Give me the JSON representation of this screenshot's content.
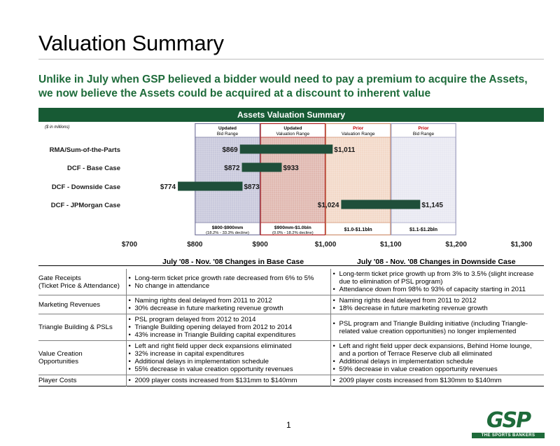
{
  "page": {
    "title": "Valuation Summary",
    "subtitle": "Unlike in July when GSP believed a bidder would need to pay a premium to acquire the Assets, we now believe the Assets could be acquired at a discount to inherent value",
    "section_title": "Assets Valuation Summary",
    "units_note": "($ in millions)",
    "page_number": "1"
  },
  "chart_data": {
    "type": "bar",
    "orientation": "horizontal-range",
    "xlim": [
      700,
      1300
    ],
    "xticks": [
      700,
      800,
      900,
      1000,
      1100,
      1200,
      1300
    ],
    "xtick_labels": [
      "$700",
      "$800",
      "$900",
      "$1,000",
      "$1,100",
      "$1,200",
      "$1,300"
    ],
    "categories": [
      "RMA/Sum-of-the-Parts",
      "DCF - Base Case",
      "DCF - Downside Case",
      "DCF - JPMorgan Case"
    ],
    "ranges": [
      {
        "low": 869,
        "high": 1011,
        "low_label": "$869",
        "high_label": "$1,011"
      },
      {
        "low": 872,
        "high": 933,
        "low_label": "$872",
        "high_label": "$933"
      },
      {
        "low": 774,
        "high": 873,
        "low_label": "$774",
        "high_label": "$873"
      },
      {
        "low": 1024,
        "high": 1145,
        "low_label": "$1,024",
        "high_label": "$1,145"
      }
    ],
    "reference_bands": [
      {
        "header_line1": "Updated",
        "header_line2": "Bid Range",
        "from": 800,
        "to": 900,
        "value_line1": "$800-$900mm",
        "value_line2": "(18.2% - 33.3% decline)",
        "fill": "#c9c9dc",
        "border": "#7a7aa0",
        "header_color": "#000000"
      },
      {
        "header_line1": "Updated",
        "header_line2": "Valuation Range",
        "from": 900,
        "to": 1000,
        "value_line1": "$900mm-$1.0bln",
        "value_line2": "(0.0% - 18.2% decline)",
        "fill": "#e0b8b0",
        "border": "#b02020",
        "header_color": "#000000"
      },
      {
        "header_line1": "Prior",
        "header_line2": "Valuation Range",
        "from": 1000,
        "to": 1100,
        "value_line1": "$1.0-$1.1bln",
        "value_line2": "",
        "fill": "#f3d9c9",
        "border": "#d09070",
        "header_color": "#c00000"
      },
      {
        "header_line1": "Prior",
        "header_line2": "Bid Range",
        "from": 1100,
        "to": 1200,
        "value_line1": "$1.1-$1.2bln",
        "value_line2": "",
        "fill": "#e9e9f2",
        "border": "#a0a0c0",
        "header_color": "#c00000"
      }
    ],
    "bar_color": "#1f4f3a"
  },
  "changes": {
    "base_header": "July '08 - Nov. '08 Changes in Base Case",
    "downside_header": "July '08 - Nov. '08 Changes in Downside Case",
    "rows": [
      {
        "category": [
          "Gate Receipts",
          "(Ticket Price & Attendance)"
        ],
        "base": [
          "Long-term ticket price growth rate decreased from 6% to 5%",
          "No change in attendance"
        ],
        "downside": [
          "Long-term ticket price growth up from 3% to 3.5% (slight increase due to elimination of PSL program)",
          "Attendance down from 98% to 93% of capacity starting in 2011"
        ]
      },
      {
        "category": [
          "Marketing Revenues"
        ],
        "base": [
          "Naming rights deal delayed from 2011 to 2012",
          "30% decrease in future marketing revenue growth"
        ],
        "downside": [
          "Naming rights deal delayed from 2011 to 2012",
          "18% decrease in future marketing revenue growth"
        ]
      },
      {
        "category": [
          "Triangle Building & PSLs"
        ],
        "base": [
          "PSL program delayed from 2012 to 2014",
          "Triangle Building opening delayed from 2012 to 2014",
          "43% increase in Triangle Building capital expenditures"
        ],
        "downside": [
          "PSL program and Triangle Building initiative (including Triangle-related value creation opportunities) no longer implemented"
        ]
      },
      {
        "category": [
          "Value Creation",
          "Opportunities"
        ],
        "base": [
          "Left and right field upper deck expansions eliminated",
          "32% increase in capital expenditures",
          "Additional delays in implementation schedule",
          "55% decrease in value creation opportunity revenues"
        ],
        "downside": [
          "Left and right field upper deck expansions, Behind Home lounge, and a portion of Terrace Reserve club all eliminated",
          "Additional delays in implementation schedule",
          "59% decrease in value creation opportunity revenues"
        ]
      },
      {
        "category": [
          "Player Costs"
        ],
        "base": [
          "2009 player costs increased from $131mm to $140mm"
        ],
        "downside": [
          "2009 player costs increased from $130mm to $140mm"
        ]
      }
    ]
  },
  "logo": {
    "text": "GSP",
    "tagline": "THE SPORTS BANKERS"
  }
}
